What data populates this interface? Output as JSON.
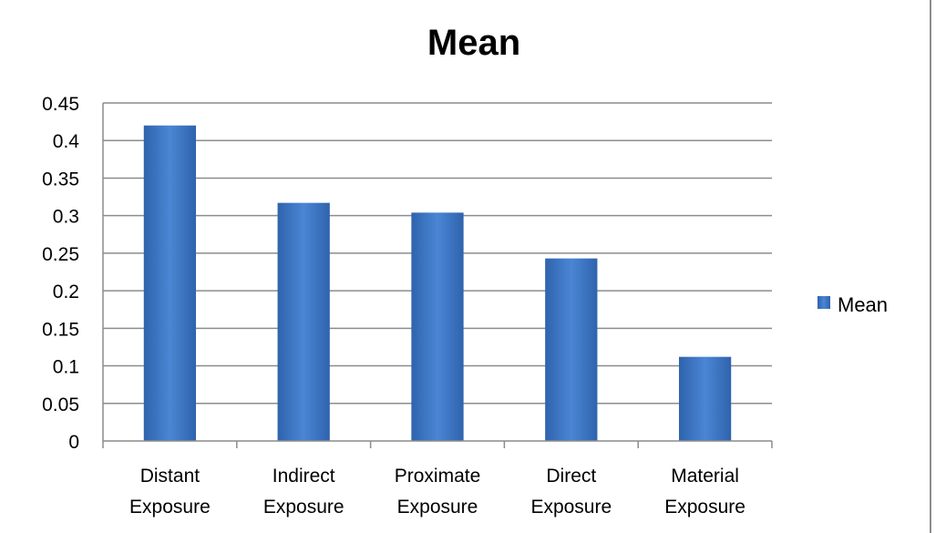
{
  "chart_data": {
    "type": "bar",
    "title": "Mean",
    "categories": [
      [
        "Distant",
        "Exposure"
      ],
      [
        "Indirect",
        "Exposure"
      ],
      [
        "Proximate",
        "Exposure"
      ],
      [
        "Direct",
        "Exposure"
      ],
      [
        "Material",
        "Exposure"
      ]
    ],
    "series": [
      {
        "name": "Mean",
        "values": [
          0.42,
          0.317,
          0.304,
          0.243,
          0.112
        ]
      }
    ],
    "yticks": [
      "0",
      "0.05",
      "0.1",
      "0.15",
      "0.2",
      "0.25",
      "0.3",
      "0.35",
      "0.4",
      "0.45"
    ],
    "ylim": [
      0,
      0.45
    ],
    "xlabel": "",
    "ylabel": "",
    "grid": true,
    "legend_position": "right",
    "colors": {
      "bar": "#3b73c0",
      "bar_light": "#4a86d4",
      "bar_dark": "#2c5c9f",
      "grid": "#8c8c8c"
    }
  }
}
